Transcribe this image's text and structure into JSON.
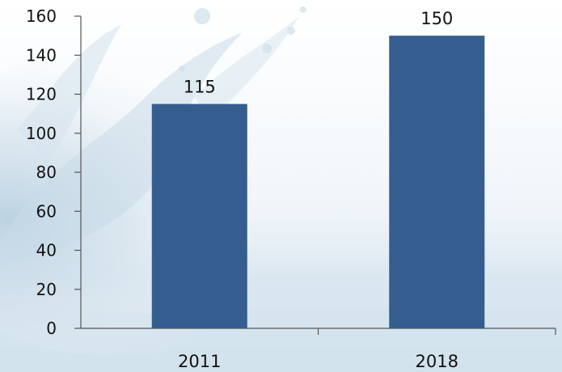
{
  "chart_data": {
    "type": "bar",
    "categories": [
      "2011",
      "2018"
    ],
    "values": [
      115,
      150
    ],
    "data_labels": [
      "115",
      "150"
    ],
    "title": "",
    "xlabel": "",
    "ylabel": "",
    "ylim": [
      0,
      160
    ],
    "yticks": [
      "0",
      "20",
      "40",
      "60",
      "80",
      "100",
      "120",
      "140",
      "160"
    ],
    "grid": false,
    "legend": "none",
    "bar_color": "#355d8f",
    "background": "water splash image"
  }
}
